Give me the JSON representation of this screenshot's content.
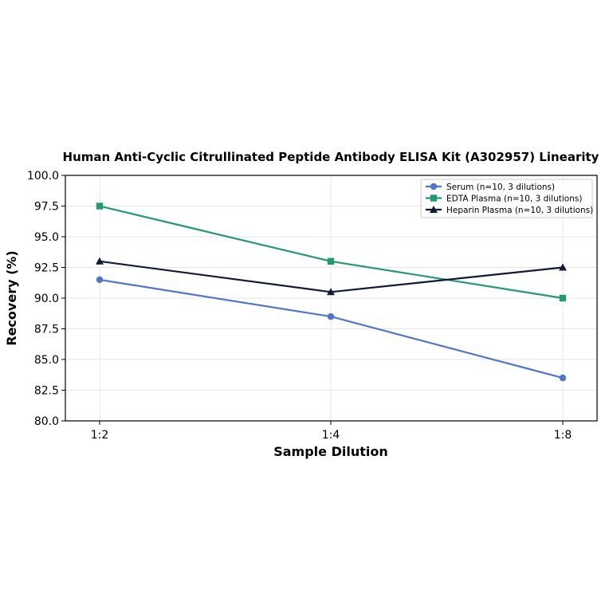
{
  "chart_data": {
    "type": "line",
    "title": "Human Anti-Cyclic Citrullinated Peptide Antibody ELISA Kit (A302957) Linearity",
    "xlabel": "Sample Dilution",
    "ylabel": "Recovery (%)",
    "categories": [
      "1:2",
      "1:4",
      "1:8"
    ],
    "ylim": [
      80.0,
      100.0
    ],
    "yticks": [
      "80.0",
      "82.5",
      "85.0",
      "87.5",
      "90.0",
      "92.5",
      "95.0",
      "97.5",
      "100.0"
    ],
    "grid": true,
    "legend_position": "top-right",
    "series": [
      {
        "name": "Serum (n=10, 3 dilutions)",
        "values": [
          91.5,
          88.5,
          83.5
        ],
        "color": "#4f74d1",
        "marker": "circle"
      },
      {
        "name": "EDTA Plasma (n=10, 3 dilutions)",
        "values": [
          97.5,
          93.0,
          90.0
        ],
        "color": "#229a6e",
        "marker": "square"
      },
      {
        "name": "Heparin Plasma (n=10, 3 dilutions)",
        "values": [
          93.0,
          90.5,
          92.5
        ],
        "color": "#0f1a3a",
        "marker": "triangle"
      }
    ]
  }
}
